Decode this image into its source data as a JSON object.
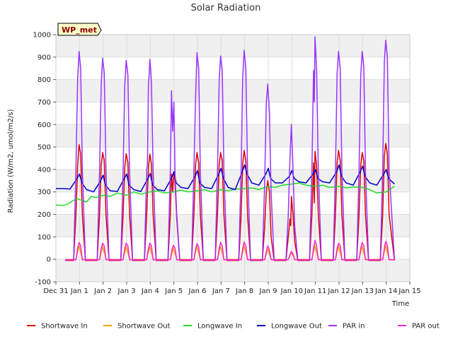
{
  "chart_data": {
    "type": "line",
    "title": "Solar Radiation",
    "xlabel": "Time",
    "ylabel": "Radiation (W/m2, umol/m2/s)",
    "badge": "WP_met",
    "ylim": [
      -100,
      1000
    ],
    "xlim": [
      0,
      15
    ],
    "yticks": [
      -100,
      0,
      100,
      200,
      300,
      400,
      500,
      600,
      700,
      800,
      900,
      1000
    ],
    "xticks": [
      {
        "value": 0,
        "label": "Dec 31"
      },
      {
        "value": 1,
        "label": "Jan 1"
      },
      {
        "value": 2,
        "label": "Jan 2"
      },
      {
        "value": 3,
        "label": "Jan 3"
      },
      {
        "value": 4,
        "label": "Jan 4"
      },
      {
        "value": 5,
        "label": "Jan 5"
      },
      {
        "value": 6,
        "label": "Jan 6"
      },
      {
        "value": 7,
        "label": "Jan 7"
      },
      {
        "value": 8,
        "label": "Jan 8"
      },
      {
        "value": 9,
        "label": "Jan 9"
      },
      {
        "value": 10,
        "label": "Jan 10"
      },
      {
        "value": 11,
        "label": "Jan 11"
      },
      {
        "value": 12,
        "label": "Jan 12"
      },
      {
        "value": 13,
        "label": "Jan 13"
      },
      {
        "value": 14,
        "label": "Jan 14"
      },
      {
        "value": 15,
        "label": "Jan 15"
      }
    ],
    "grid": true,
    "legend_position": "bottom",
    "series": [
      {
        "name": "Shortwave In",
        "color": "#dd0000",
        "x": [
          0.4,
          0.75,
          0.85,
          0.92,
          0.98,
          1.05,
          1.12,
          1.25,
          1.75,
          1.85,
          1.92,
          1.98,
          2.05,
          2.12,
          2.25,
          2.75,
          2.85,
          2.92,
          2.98,
          3.05,
          3.12,
          3.25,
          3.75,
          3.85,
          3.92,
          3.98,
          4.05,
          4.12,
          4.25,
          4.75,
          4.85,
          4.9,
          4.95,
          5.0,
          5.05,
          5.12,
          5.25,
          5.75,
          5.85,
          5.92,
          5.98,
          6.05,
          6.12,
          6.25,
          6.75,
          6.85,
          6.92,
          6.98,
          7.05,
          7.12,
          7.25,
          7.75,
          7.85,
          7.92,
          7.98,
          8.05,
          8.12,
          8.25,
          8.75,
          8.85,
          8.92,
          8.98,
          9.05,
          9.12,
          9.25,
          9.75,
          9.85,
          9.92,
          9.95,
          9.98,
          10.05,
          10.12,
          10.25,
          10.75,
          10.85,
          10.92,
          10.95,
          10.98,
          11.05,
          11.12,
          11.25,
          11.75,
          11.85,
          11.92,
          11.98,
          12.05,
          12.12,
          12.25,
          12.75,
          12.85,
          12.92,
          12.98,
          13.05,
          13.12,
          13.25,
          13.75,
          13.85,
          13.92,
          13.98,
          14.05,
          14.12,
          14.35
        ],
        "y": [
          -5,
          -5,
          200,
          420,
          510,
          470,
          200,
          -5,
          -5,
          200,
          420,
          475,
          440,
          200,
          -5,
          -5,
          200,
          410,
          470,
          430,
          200,
          -5,
          -5,
          200,
          410,
          468,
          425,
          200,
          -5,
          -5,
          200,
          380,
          300,
          390,
          340,
          180,
          -5,
          -5,
          200,
          420,
          475,
          430,
          200,
          -5,
          -5,
          200,
          420,
          475,
          440,
          200,
          -5,
          -5,
          200,
          430,
          485,
          440,
          200,
          -5,
          -5,
          150,
          300,
          350,
          300,
          100,
          -5,
          -5,
          100,
          180,
          150,
          280,
          200,
          80,
          -5,
          -5,
          200,
          430,
          250,
          480,
          420,
          200,
          -5,
          -5,
          200,
          430,
          485,
          440,
          200,
          -5,
          -5,
          200,
          420,
          475,
          440,
          200,
          -5,
          -5,
          200,
          460,
          515,
          470,
          200,
          -5
        ]
      },
      {
        "name": "Shortwave Out",
        "color": "#f0a000",
        "x": [
          0.4,
          0.85,
          0.98,
          1.12,
          1.85,
          1.98,
          2.12,
          2.85,
          2.98,
          3.12,
          3.85,
          3.98,
          4.12,
          4.85,
          4.98,
          5.12,
          5.85,
          5.98,
          6.12,
          6.85,
          6.98,
          7.12,
          7.85,
          7.98,
          8.12,
          8.85,
          8.98,
          9.12,
          9.85,
          9.98,
          10.12,
          10.85,
          10.98,
          11.12,
          11.85,
          11.98,
          12.12,
          12.85,
          12.98,
          13.12,
          13.85,
          13.98,
          14.12,
          14.35
        ],
        "y": [
          0,
          0,
          60,
          0,
          0,
          58,
          0,
          0,
          58,
          0,
          0,
          58,
          0,
          0,
          50,
          0,
          0,
          58,
          0,
          0,
          58,
          0,
          0,
          60,
          0,
          0,
          45,
          0,
          0,
          30,
          0,
          0,
          60,
          0,
          0,
          60,
          0,
          0,
          58,
          0,
          0,
          62,
          0,
          0
        ]
      },
      {
        "name": "Longwave In",
        "color": "#22dd22",
        "x": [
          0.0,
          0.3,
          0.5,
          0.7,
          0.9,
          1.1,
          1.3,
          1.5,
          1.7,
          2.0,
          2.3,
          2.6,
          3.0,
          3.3,
          3.6,
          4.0,
          4.3,
          4.6,
          5.0,
          5.3,
          5.6,
          6.0,
          6.3,
          6.6,
          7.0,
          7.3,
          7.6,
          8.0,
          8.3,
          8.6,
          9.0,
          9.3,
          9.6,
          10.0,
          10.3,
          10.6,
          11.0,
          11.3,
          11.6,
          12.0,
          12.3,
          12.6,
          13.0,
          13.3,
          13.6,
          14.0,
          14.35
        ],
        "y": [
          242,
          240,
          245,
          260,
          270,
          262,
          255,
          280,
          275,
          285,
          280,
          295,
          285,
          300,
          290,
          300,
          305,
          295,
          300,
          308,
          300,
          305,
          310,
          300,
          310,
          305,
          312,
          315,
          318,
          310,
          325,
          320,
          330,
          335,
          340,
          330,
          325,
          330,
          320,
          325,
          318,
          322,
          320,
          310,
          295,
          300,
          325
        ]
      },
      {
        "name": "Longwave Out",
        "color": "#0000cc",
        "x": [
          0.0,
          0.3,
          0.6,
          0.9,
          1.0,
          1.1,
          1.3,
          1.6,
          1.9,
          2.0,
          2.1,
          2.3,
          2.6,
          2.9,
          3.0,
          3.1,
          3.3,
          3.6,
          3.9,
          4.0,
          4.1,
          4.3,
          4.6,
          4.9,
          5.0,
          5.1,
          5.3,
          5.6,
          5.9,
          6.0,
          6.1,
          6.3,
          6.6,
          6.9,
          7.0,
          7.1,
          7.3,
          7.6,
          7.9,
          8.0,
          8.1,
          8.3,
          8.6,
          8.9,
          9.0,
          9.1,
          9.3,
          9.6,
          9.9,
          10.0,
          10.1,
          10.3,
          10.6,
          10.9,
          11.0,
          11.1,
          11.3,
          11.6,
          11.9,
          12.0,
          12.1,
          12.3,
          12.6,
          12.9,
          13.0,
          13.1,
          13.3,
          13.6,
          13.9,
          14.0,
          14.1,
          14.35
        ],
        "y": [
          315,
          315,
          313,
          360,
          380,
          340,
          310,
          300,
          350,
          375,
          330,
          305,
          302,
          360,
          380,
          330,
          310,
          302,
          360,
          382,
          330,
          310,
          305,
          360,
          390,
          340,
          320,
          315,
          370,
          395,
          340,
          320,
          315,
          380,
          405,
          360,
          320,
          310,
          390,
          420,
          380,
          340,
          330,
          380,
          405,
          360,
          340,
          340,
          370,
          395,
          360,
          345,
          340,
          380,
          400,
          360,
          345,
          340,
          390,
          420,
          370,
          340,
          330,
          390,
          415,
          370,
          340,
          330,
          380,
          400,
          360,
          335
        ]
      },
      {
        "name": "PAR in",
        "color": "#9933ff",
        "x": [
          0.4,
          0.75,
          0.85,
          0.92,
          0.98,
          1.05,
          1.12,
          1.25,
          1.75,
          1.85,
          1.92,
          1.98,
          2.05,
          2.12,
          2.25,
          2.75,
          2.85,
          2.92,
          2.98,
          3.05,
          3.12,
          3.25,
          3.75,
          3.85,
          3.88,
          3.92,
          3.95,
          3.98,
          4.02,
          4.05,
          4.12,
          4.25,
          4.75,
          4.85,
          4.9,
          4.95,
          5.0,
          5.05,
          5.12,
          5.25,
          5.75,
          5.85,
          5.92,
          5.98,
          6.05,
          6.12,
          6.25,
          6.75,
          6.85,
          6.92,
          6.98,
          7.05,
          7.12,
          7.25,
          7.75,
          7.85,
          7.92,
          7.98,
          8.05,
          8.12,
          8.25,
          8.75,
          8.85,
          8.92,
          8.98,
          9.05,
          9.12,
          9.25,
          9.75,
          9.85,
          9.92,
          9.98,
          10.05,
          10.12,
          10.25,
          10.75,
          10.85,
          10.92,
          10.95,
          10.98,
          11.05,
          11.12,
          11.25,
          11.75,
          11.85,
          11.92,
          11.98,
          12.05,
          12.12,
          12.25,
          12.75,
          12.85,
          12.92,
          12.98,
          13.05,
          13.12,
          13.25,
          13.75,
          13.85,
          13.92,
          13.98,
          14.05,
          14.12,
          14.35
        ],
        "y": [
          -3,
          -3,
          400,
          800,
          925,
          850,
          400,
          -3,
          -3,
          400,
          780,
          895,
          830,
          400,
          -3,
          -3,
          400,
          780,
          885,
          820,
          400,
          -3,
          -3,
          400,
          420,
          780,
          820,
          890,
          840,
          780,
          400,
          -3,
          -3,
          400,
          750,
          570,
          700,
          380,
          200,
          -3,
          -3,
          400,
          720,
          920,
          850,
          400,
          -3,
          -3,
          400,
          800,
          905,
          840,
          400,
          -3,
          -3,
          400,
          820,
          930,
          850,
          400,
          -3,
          -3,
          350,
          700,
          780,
          650,
          300,
          -3,
          -3,
          200,
          450,
          600,
          400,
          150,
          -3,
          -3,
          400,
          840,
          700,
          990,
          850,
          400,
          -3,
          -3,
          400,
          830,
          925,
          850,
          400,
          -3,
          -3,
          400,
          820,
          925,
          860,
          400,
          -3,
          -3,
          400,
          880,
          975,
          900,
          400,
          -3
        ]
      },
      {
        "name": "PAR out",
        "color": "#ff22cc",
        "x": [
          0.4,
          0.85,
          0.92,
          0.98,
          1.05,
          1.12,
          1.85,
          1.92,
          1.98,
          2.05,
          2.12,
          2.85,
          2.92,
          2.98,
          3.05,
          3.12,
          3.85,
          3.92,
          3.98,
          4.05,
          4.12,
          4.85,
          4.92,
          4.98,
          5.05,
          5.12,
          5.85,
          5.92,
          5.98,
          6.05,
          6.12,
          6.85,
          6.92,
          6.98,
          7.05,
          7.12,
          7.85,
          7.92,
          7.98,
          8.05,
          8.12,
          8.85,
          8.92,
          8.98,
          9.05,
          9.12,
          9.85,
          9.92,
          9.98,
          10.05,
          10.12,
          10.85,
          10.92,
          10.98,
          11.05,
          11.12,
          11.85,
          11.92,
          11.98,
          12.05,
          12.12,
          12.85,
          12.92,
          12.98,
          13.05,
          13.12,
          13.85,
          13.92,
          13.98,
          14.05,
          14.12,
          14.35
        ],
        "y": [
          -2,
          -2,
          50,
          75,
          60,
          -2,
          -2,
          50,
          72,
          60,
          -2,
          -2,
          50,
          72,
          60,
          -2,
          -2,
          50,
          72,
          60,
          -2,
          -2,
          45,
          62,
          50,
          -2,
          -2,
          45,
          70,
          55,
          -2,
          -2,
          50,
          75,
          60,
          -2,
          -2,
          50,
          78,
          60,
          -2,
          -2,
          35,
          60,
          40,
          -2,
          -2,
          20,
          35,
          25,
          -2,
          -2,
          50,
          85,
          60,
          -2,
          -2,
          50,
          72,
          60,
          -2,
          -2,
          50,
          75,
          60,
          -2,
          -2,
          50,
          80,
          60,
          -2,
          -2
        ]
      }
    ]
  }
}
